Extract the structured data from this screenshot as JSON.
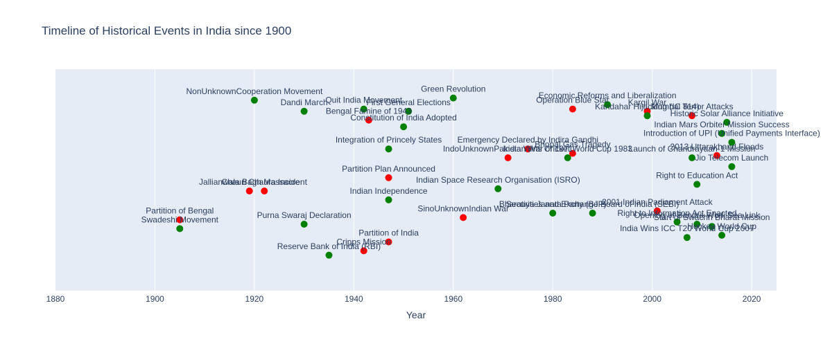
{
  "chart_data": {
    "type": "scatter",
    "title": "Timeline of Historical Events in India since 1900",
    "xlabel": "Year",
    "ylabel": "",
    "xlim": [
      1880,
      2025
    ],
    "ylim": [
      0,
      100
    ],
    "xticks": [
      1880,
      1900,
      1920,
      1940,
      1960,
      1980,
      2000,
      2020
    ],
    "y_axis_visible": false,
    "grid": "vertical",
    "legend": "none",
    "colors": {
      "green": "#008000",
      "red": "#ff0000"
    },
    "points": [
      {
        "x": 1905,
        "y": 28,
        "label": "Swadeshi Movement",
        "color": "green"
      },
      {
        "x": 1905,
        "y": 32,
        "label": "Partition of Bengal",
        "color": "red"
      },
      {
        "x": 1919,
        "y": 45,
        "label": "Jallianwala Bagh Massacre",
        "color": "red"
      },
      {
        "x": 1920,
        "y": 86,
        "label": "NonUnknownCooperation Movement",
        "color": "green"
      },
      {
        "x": 1922,
        "y": 45,
        "label": "Chauri Chaura Incident",
        "color": "red"
      },
      {
        "x": 1930,
        "y": 81,
        "label": "Dandi March",
        "color": "green"
      },
      {
        "x": 1930,
        "y": 30,
        "label": "Purna Swaraj Declaration",
        "color": "green"
      },
      {
        "x": 1935,
        "y": 16,
        "label": "Reserve Bank of India (RBI)",
        "color": "green"
      },
      {
        "x": 1942,
        "y": 18,
        "label": "Cripps Mission",
        "color": "red"
      },
      {
        "x": 1942,
        "y": 82,
        "label": "Quit India Movement",
        "color": "green"
      },
      {
        "x": 1943,
        "y": 77,
        "label": "Bengal Famine of 1943",
        "color": "red"
      },
      {
        "x": 1947,
        "y": 41,
        "label": "Indian Independence",
        "color": "green"
      },
      {
        "x": 1947,
        "y": 22,
        "label": "Partition of India",
        "color": "red"
      },
      {
        "x": 1947,
        "y": 64,
        "label": "Integration of Princely States",
        "color": "green"
      },
      {
        "x": 1947,
        "y": 51,
        "label": "Partition Plan Announced",
        "color": "red"
      },
      {
        "x": 1950,
        "y": 74,
        "label": "Constitution of India Adopted",
        "color": "green"
      },
      {
        "x": 1951,
        "y": 81,
        "label": "First General Elections",
        "color": "green"
      },
      {
        "x": 1960,
        "y": 87,
        "label": "Green Revolution",
        "color": "green"
      },
      {
        "x": 1962,
        "y": 33,
        "label": "SinoUnknownIndian War",
        "color": "red"
      },
      {
        "x": 1969,
        "y": 46,
        "label": "Indian Space Research Organisation (ISRO)",
        "color": "green"
      },
      {
        "x": 1971,
        "y": 60,
        "label": "IndoUnknownPakistan War of 1971",
        "color": "red"
      },
      {
        "x": 1975,
        "y": 64,
        "label": "Emergency Declared by Indira Gandhi",
        "color": "red"
      },
      {
        "x": 1980,
        "y": 35,
        "label": "Bharatiya Janata Party (BJP)",
        "color": "green"
      },
      {
        "x": 1983,
        "y": 60,
        "label": "India Wins Cricket World Cup 1983",
        "color": "green"
      },
      {
        "x": 1984,
        "y": 82,
        "label": "Operation Blue Star",
        "color": "red"
      },
      {
        "x": 1984,
        "y": 62,
        "label": "Bhopal Gas Tragedy",
        "color": "red"
      },
      {
        "x": 1988,
        "y": 35,
        "label": "Securities and Exchange Board of India (SEBI)",
        "color": "green"
      },
      {
        "x": 1991,
        "y": 84,
        "label": "Economic Reforms and Liberalization",
        "color": "green"
      },
      {
        "x": 1999,
        "y": 81,
        "label": "Kargil War",
        "color": "red"
      },
      {
        "x": 1999,
        "y": 79,
        "label": "Kandahar Hijacking (IC 814)",
        "color": "green"
      },
      {
        "x": 2001,
        "y": 36,
        "label": "2001 Indian Parliament Attack",
        "color": "red"
      },
      {
        "x": 2005,
        "y": 31,
        "label": "Right to Information Act Enacted",
        "color": "green"
      },
      {
        "x": 2007,
        "y": 24,
        "label": "India Wins ICC T20 World Cup 2007",
        "color": "green"
      },
      {
        "x": 2008,
        "y": 79,
        "label": "Mumbai Terror Attacks",
        "color": "red"
      },
      {
        "x": 2008,
        "y": 60,
        "label": "Launch of Chandrayaan-1 Mission",
        "color": "green"
      },
      {
        "x": 2009,
        "y": 30,
        "label": "Opening of Bandra-Worli Sea Link",
        "color": "green"
      },
      {
        "x": 2009,
        "y": 48,
        "label": "Right to Education Act",
        "color": "green"
      },
      {
        "x": 2012,
        "y": 29,
        "label": "Start of Swachh Bharat Mission",
        "color": "green"
      },
      {
        "x": 2013,
        "y": 61,
        "label": "2013 Uttarakhand Floods",
        "color": "red"
      },
      {
        "x": 2014,
        "y": 71,
        "label": "Indian Mars Orbiter Mission Success",
        "color": "green"
      },
      {
        "x": 2014,
        "y": 25,
        "label": "Hockey World Cup",
        "color": "green"
      },
      {
        "x": 2015,
        "y": 76,
        "label": "Historic Solar Alliance Initiative",
        "color": "green"
      },
      {
        "x": 2016,
        "y": 67,
        "label": "Introduction of UPI (Unified Payments Interface)",
        "color": "green"
      },
      {
        "x": 2016,
        "y": 56,
        "label": "Jio Telecom Launch",
        "color": "green"
      }
    ]
  }
}
